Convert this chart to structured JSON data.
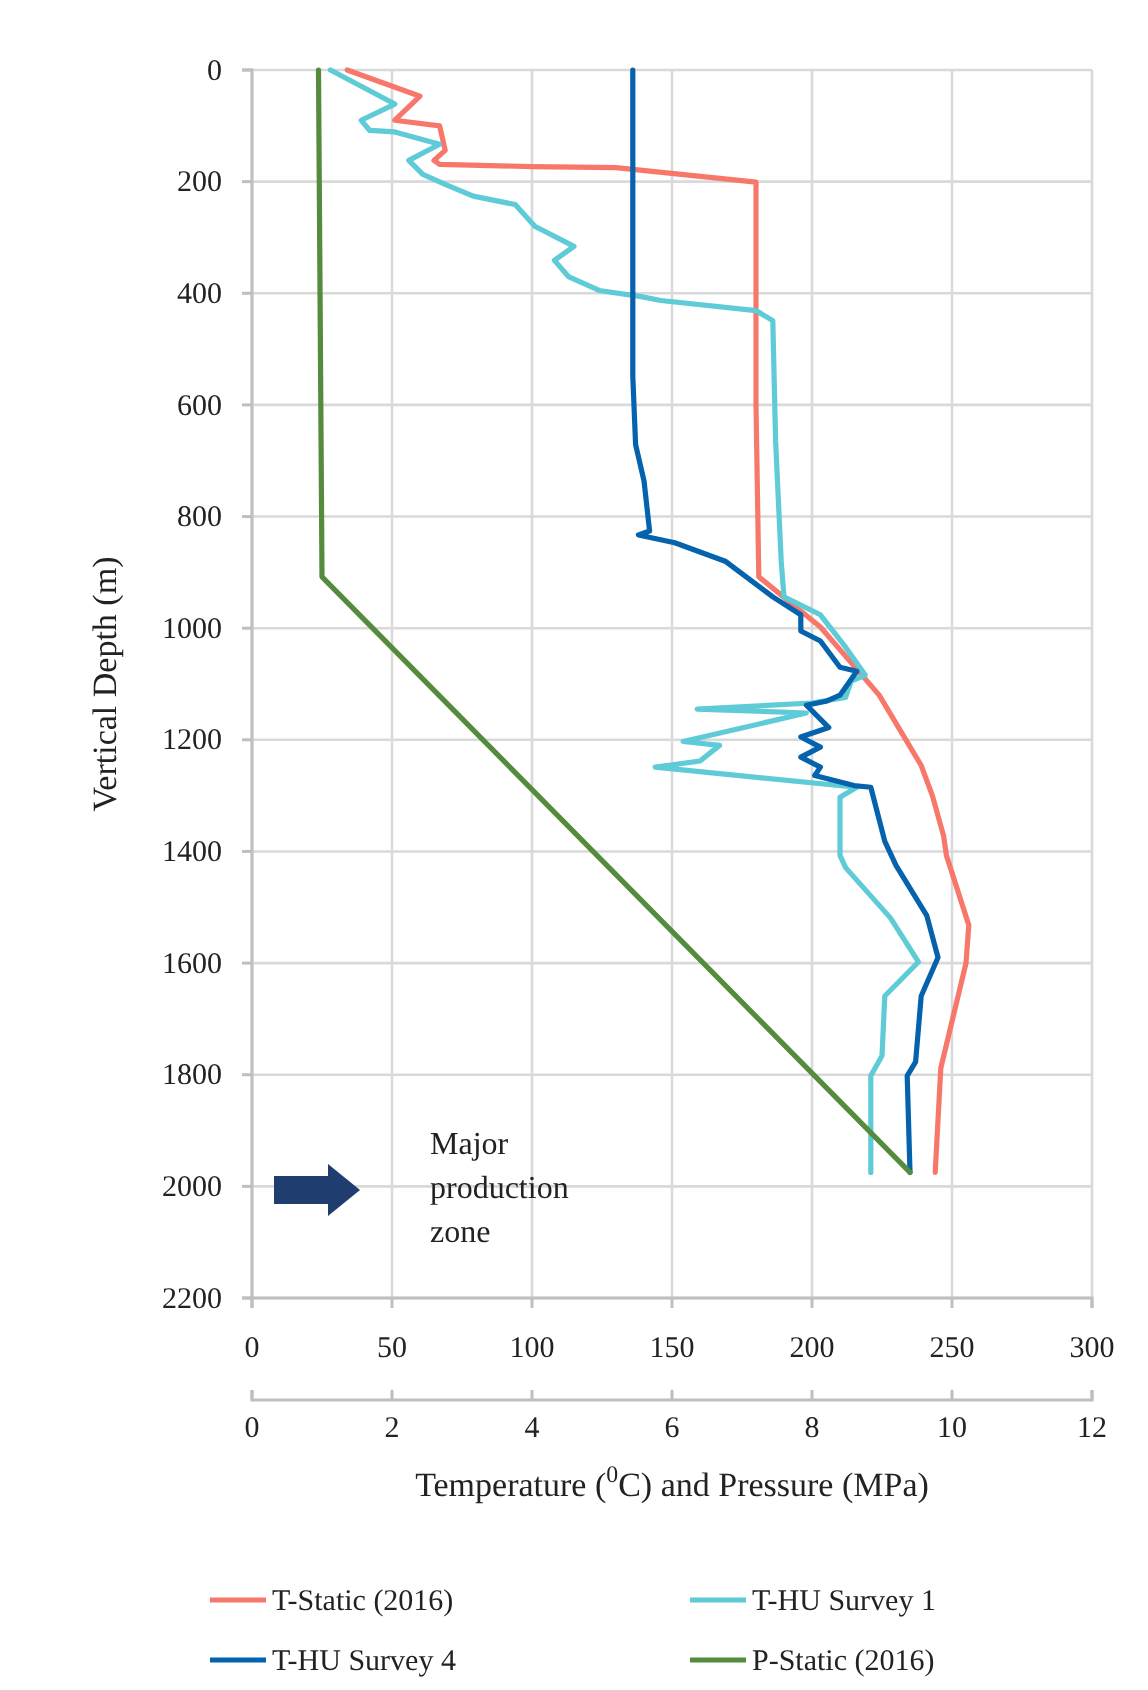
{
  "chart_data": {
    "type": "line",
    "xlabel": "Temperature ($^{0}$C) and Pressure (MPa)",
    "ylabel": "Vertical Depth (m)",
    "xlim": [
      0,
      300
    ],
    "xticks": [
      0,
      50,
      100,
      150,
      200,
      250,
      300
    ],
    "x2lim": [
      0,
      12
    ],
    "x2ticks": [
      0,
      2,
      4,
      6,
      8,
      10,
      12
    ],
    "ylim": [
      2200,
      0
    ],
    "yticks": [
      0,
      200,
      400,
      600,
      800,
      1000,
      1200,
      1400,
      1600,
      1800,
      2000,
      2200
    ],
    "grid": true,
    "legend": "bottom",
    "line_style": "solid",
    "marker": "none",
    "annotations": [
      "Major production zone"
    ],
    "series": [
      {
        "name": "T-Static (2016)",
        "color": "#f8776b",
        "x": [
          34,
          60,
          51,
          67,
          69,
          65,
          67,
          100,
          130,
          180,
          180,
          181,
          203,
          224,
          239,
          243,
          247,
          248,
          256,
          255,
          246,
          244
        ],
        "values": [
          0,
          47,
          90,
          100,
          144,
          162,
          169,
          173,
          175,
          201,
          600,
          908,
          998,
          1120,
          1246,
          1300,
          1372,
          1407,
          1532,
          1600,
          1788,
          1975
        ]
      },
      {
        "name": "T-HU Survey 1",
        "color": "#5ecbd6",
        "x": [
          28,
          51,
          39,
          42,
          51,
          67,
          56,
          61,
          69,
          79,
          94,
          101,
          115,
          108,
          113,
          124,
          139,
          146,
          180,
          186,
          187,
          189,
          190,
          203,
          212,
          219,
          214,
          212,
          200,
          159,
          198,
          154,
          167,
          160,
          144,
          216,
          210,
          210,
          212,
          228,
          238,
          226,
          225,
          221,
          221
        ],
        "values": [
          0,
          61,
          90,
          108,
          111,
          133,
          162,
          187,
          205,
          226,
          241,
          280,
          316,
          341,
          370,
          395,
          406,
          413,
          431,
          449,
          664,
          880,
          944,
          976,
          1034,
          1084,
          1095,
          1124,
          1134,
          1145,
          1152,
          1203,
          1210,
          1238,
          1249,
          1285,
          1303,
          1407,
          1429,
          1519,
          1598,
          1659,
          1766,
          1802,
          1975
        ]
      },
      {
        "name": "T-HU Survey 4",
        "color": "#0563ad",
        "x": [
          136,
          136,
          137,
          140,
          142,
          138,
          151,
          169,
          186,
          196,
          196,
          203,
          210,
          216,
          210,
          205,
          198,
          206,
          196,
          203,
          196,
          203,
          201,
          215,
          221,
          226,
          230,
          241,
          245,
          239,
          237,
          234,
          235
        ],
        "values": [
          0,
          549,
          671,
          736,
          826,
          833,
          847,
          880,
          944,
          976,
          1005,
          1023,
          1070,
          1077,
          1120,
          1131,
          1138,
          1178,
          1195,
          1213,
          1231,
          1249,
          1264,
          1282,
          1285,
          1382,
          1425,
          1515,
          1590,
          1659,
          1777,
          1802,
          1975
        ]
      },
      {
        "name": "P-Static (2016)",
        "color": "#548b3c",
        "axis": "x2",
        "x": [
          0.95,
          1.0,
          9.4
        ],
        "values": [
          0,
          908,
          1975
        ]
      }
    ]
  }
}
